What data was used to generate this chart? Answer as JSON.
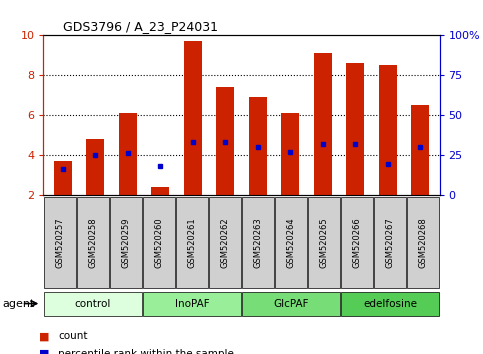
{
  "title": "GDS3796 / A_23_P24031",
  "samples": [
    "GSM520257",
    "GSM520258",
    "GSM520259",
    "GSM520260",
    "GSM520261",
    "GSM520262",
    "GSM520263",
    "GSM520264",
    "GSM520265",
    "GSM520266",
    "GSM520267",
    "GSM520268"
  ],
  "count_values": [
    3.7,
    4.8,
    6.1,
    2.4,
    9.7,
    7.4,
    6.9,
    6.1,
    9.1,
    8.6,
    8.5,
    6.5
  ],
  "percentile_values": [
    16,
    25,
    26,
    18,
    33,
    33,
    30,
    27,
    32,
    32,
    19,
    30
  ],
  "bar_color": "#cc2200",
  "dot_color": "#0000cc",
  "ylim_left": [
    2,
    10
  ],
  "ylim_right": [
    0,
    100
  ],
  "yticks_left": [
    2,
    4,
    6,
    8,
    10
  ],
  "yticks_right": [
    0,
    25,
    50,
    75,
    100
  ],
  "ytick_labels_right": [
    "0",
    "25",
    "50",
    "75",
    "100%"
  ],
  "groups": [
    {
      "label": "control",
      "start": 0,
      "end": 3,
      "color": "#ddffdd"
    },
    {
      "label": "InoPAF",
      "start": 3,
      "end": 6,
      "color": "#99ee99"
    },
    {
      "label": "GlcPAF",
      "start": 6,
      "end": 9,
      "color": "#77dd77"
    },
    {
      "label": "edelfosine",
      "start": 9,
      "end": 12,
      "color": "#55cc55"
    }
  ],
  "agent_label": "agent",
  "legend_count": "count",
  "legend_percentile": "percentile rank within the sample",
  "bar_width": 0.55,
  "tickbox_color": "#d0d0d0",
  "plot_bg": "#ffffff",
  "left_tick_color": "#cc2200",
  "right_tick_color": "#0000cc",
  "grid_lines": [
    4,
    6,
    8
  ]
}
